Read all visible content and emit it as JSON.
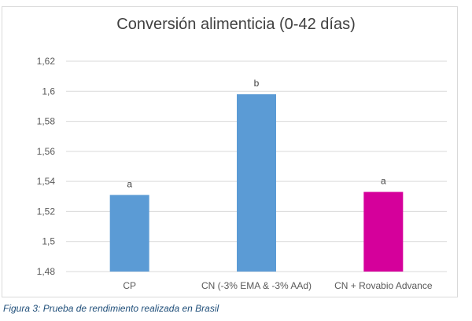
{
  "chart_data": {
    "type": "bar",
    "title": "Conversión alimenticia (0-42 días)",
    "categories": [
      "CP",
      "CN (-3% EMA & -3% AAd)",
      "CN + Rovabio Advance"
    ],
    "values": [
      1.531,
      1.598,
      1.533
    ],
    "bar_colors": [
      "#5b9bd5",
      "#5b9bd5",
      "#d5009b"
    ],
    "annotations": [
      "a",
      "b",
      "a"
    ],
    "ylim": [
      1.48,
      1.62
    ],
    "yticks": [
      1.48,
      1.5,
      1.52,
      1.54,
      1.56,
      1.58,
      1.6,
      1.62
    ],
    "ytick_labels": [
      "1,48",
      "1,5",
      "1,52",
      "1,54",
      "1,56",
      "1,58",
      "1,6",
      "1,62"
    ],
    "grid": true,
    "xlabel": "",
    "ylabel": ""
  },
  "caption": "Figura 3: Prueba de rendimiento realizada en Brasil"
}
